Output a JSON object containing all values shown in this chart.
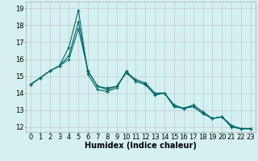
{
  "xlabel": "Humidex (Indice chaleur)",
  "background_color": "#d4f0f0",
  "grid_color": "#c0c8c8",
  "line_color": "#006666",
  "xlim": [
    -0.5,
    23.5
  ],
  "ylim": [
    11.7,
    19.4
  ],
  "yticks": [
    12,
    13,
    14,
    15,
    16,
    17,
    18,
    19
  ],
  "xticks": [
    0,
    1,
    2,
    3,
    4,
    5,
    6,
    7,
    8,
    9,
    10,
    11,
    12,
    13,
    14,
    15,
    16,
    17,
    18,
    19,
    20,
    21,
    22,
    23
  ],
  "series": [
    [
      14.5,
      14.9,
      15.3,
      15.6,
      16.7,
      18.9,
      15.1,
      14.2,
      14.1,
      14.3,
      15.3,
      14.7,
      14.5,
      13.9,
      14.0,
      13.2,
      13.1,
      13.3,
      12.9,
      12.5,
      12.6,
      12.0,
      11.9,
      11.9
    ],
    [
      14.5,
      14.9,
      15.3,
      15.6,
      16.2,
      18.2,
      15.3,
      14.4,
      14.2,
      14.4,
      15.2,
      14.8,
      14.6,
      14.0,
      14.0,
      13.3,
      13.1,
      13.2,
      12.8,
      12.5,
      12.6,
      12.1,
      11.9,
      11.9
    ],
    [
      14.5,
      14.9,
      15.3,
      15.6,
      16.0,
      17.8,
      15.3,
      14.4,
      14.3,
      14.4,
      15.2,
      14.7,
      14.5,
      13.9,
      14.0,
      13.2,
      13.1,
      13.2,
      12.8,
      12.5,
      12.6,
      12.0,
      11.9,
      11.9
    ]
  ],
  "axis_fontsize": 7,
  "tick_fontsize": 6
}
